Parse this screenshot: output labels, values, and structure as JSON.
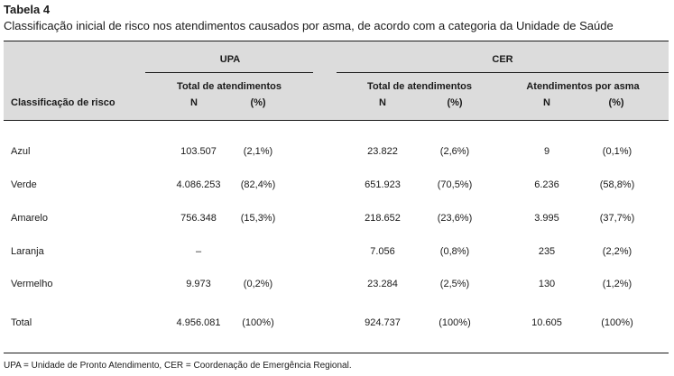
{
  "title": "Tabela 4",
  "subtitle": "Classificação inicial de risco nos atendimentos causados por asma, de acordo com a categoria da Unidade de Saúde",
  "header": {
    "upa": "UPA",
    "cer": "CER",
    "row_header": "Classificação de risco",
    "upa_total": "Total de atendimentos",
    "cer_total": "Total de atendimentos",
    "cer_asma": "Atendimentos por asma",
    "n": "N",
    "pct": "(%)"
  },
  "rows": [
    {
      "label": "Azul",
      "upa_n": "103.507",
      "upa_pct": "(2,1%)",
      "cer_n": "23.822",
      "cer_pct": "(2,6%)",
      "asma_n": "9",
      "asma_pct": "(0,1%)"
    },
    {
      "label": "Verde",
      "upa_n": "4.086.253",
      "upa_pct": "(82,4%)",
      "cer_n": "651.923",
      "cer_pct": "(70,5%)",
      "asma_n": "6.236",
      "asma_pct": "(58,8%)"
    },
    {
      "label": "Amarelo",
      "upa_n": "756.348",
      "upa_pct": "(15,3%)",
      "cer_n": "218.652",
      "cer_pct": "(23,6%)",
      "asma_n": "3.995",
      "asma_pct": "(37,7%)"
    },
    {
      "label": "Laranja",
      "upa_n": "–",
      "upa_pct": "",
      "cer_n": "7.056",
      "cer_pct": "(0,8%)",
      "asma_n": "235",
      "asma_pct": "(2,2%)"
    },
    {
      "label": "Vermelho",
      "upa_n": "9.973",
      "upa_pct": "(0,2%)",
      "cer_n": "23.284",
      "cer_pct": "(2,5%)",
      "asma_n": "130",
      "asma_pct": "(1,2%)"
    },
    {
      "label": "Total",
      "upa_n": "4.956.081",
      "upa_pct": "(100%)",
      "cer_n": "924.737",
      "cer_pct": "(100%)",
      "asma_n": "10.605",
      "asma_pct": "(100%)"
    }
  ],
  "footnote": "UPA = Unidade de Pronto Atendimento, CER = Coordenação de Emergência Regional."
}
